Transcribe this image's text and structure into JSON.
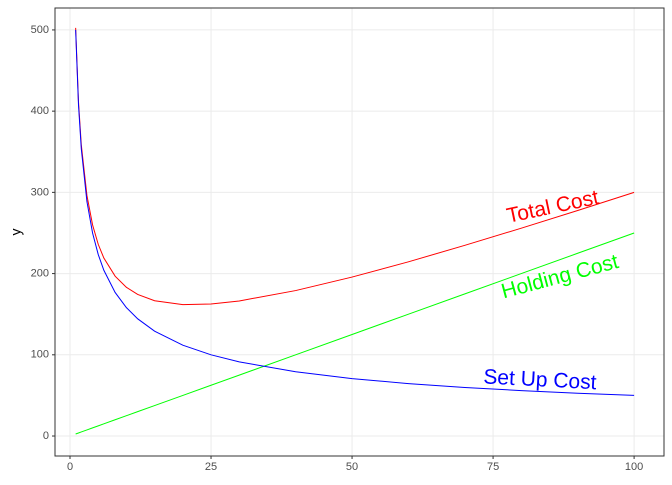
{
  "chart_data": {
    "type": "line",
    "y_label": "y",
    "x": [
      1,
      1.5,
      2,
      3,
      4,
      5,
      6,
      8,
      10,
      12,
      15,
      20,
      25,
      30,
      40,
      50,
      60,
      70,
      80,
      90,
      100
    ],
    "series": [
      {
        "name": "Total Cost",
        "color": "#ff0000",
        "values": [
          502.5,
          412,
          358.6,
          296.2,
          260,
          236.1,
          219.1,
          196.8,
          183.1,
          174.3,
          166.6,
          161.8,
          162.5,
          166.3,
          179.1,
          195.7,
          214.5,
          234.8,
          255.9,
          277.7,
          300
        ],
        "label_at": {
          "x": 85.6,
          "y": 281,
          "angle": -12
        }
      },
      {
        "name": "Holding Cost",
        "color": "#00ff00",
        "values": [
          2.5,
          3.75,
          5,
          7.5,
          10,
          12.5,
          15,
          20,
          25,
          30,
          37.5,
          50,
          62.5,
          75,
          100,
          125,
          150,
          175,
          200,
          225,
          250
        ],
        "label_at": {
          "x": 86.9,
          "y": 195,
          "angle": -15
        }
      },
      {
        "name": "Set Up Cost",
        "color": "#0000ff",
        "values": [
          500,
          408.2,
          353.6,
          288.7,
          250,
          223.6,
          204.1,
          176.8,
          158.1,
          144.3,
          129.1,
          111.8,
          100,
          91.3,
          79.1,
          70.7,
          64.5,
          59.8,
          55.9,
          52.7,
          50
        ],
        "label_at": {
          "x": 83.3,
          "y": 68,
          "angle": 3
        }
      }
    ],
    "xlim": [
      -2.66,
      105.3
    ],
    "xticks": [
      0,
      25,
      50,
      75,
      100
    ],
    "ylim": [
      -24.6,
      527
    ],
    "yticks": [
      0,
      100,
      200,
      300,
      400,
      500
    ],
    "grid": true
  }
}
